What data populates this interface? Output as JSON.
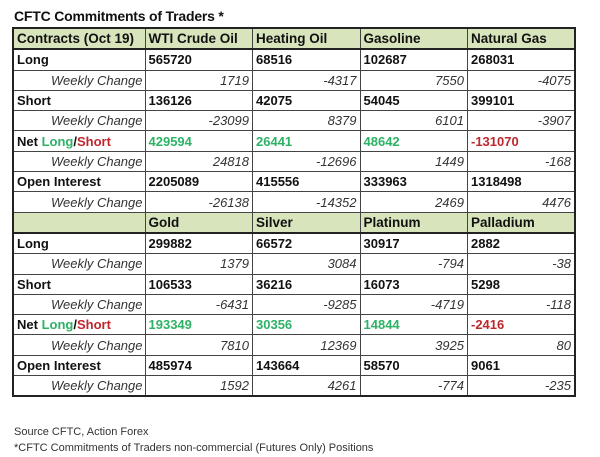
{
  "title": "CFTC Commitments of Traders *",
  "colors": {
    "header_bg": "#d8e4bc",
    "positive": "#2db266",
    "negative": "#c0272d"
  },
  "sections": [
    {
      "header": [
        "Contracts (Oct 19)",
        "WTI Crude Oil",
        "Heating Oil",
        "Gasoline",
        "Natural Gas"
      ],
      "rows": [
        {
          "label": "Long",
          "type": "main",
          "values": [
            "565720",
            "68516",
            "102687",
            "268031"
          ]
        },
        {
          "label": "Weekly Change",
          "type": "wc",
          "values": [
            "1719",
            "-4317",
            "7550",
            "-4075"
          ]
        },
        {
          "label": "Short",
          "type": "main",
          "values": [
            "136126",
            "42075",
            "54045",
            "399101"
          ]
        },
        {
          "label": "Weekly Change",
          "type": "wc",
          "values": [
            "-23099",
            "8379",
            "6101",
            "-3907"
          ]
        },
        {
          "label": "Net ",
          "label_long": "Long",
          "label_sep": "/",
          "label_short": "Short",
          "type": "net",
          "values": [
            "429594",
            "26441",
            "48642",
            "-131070"
          ]
        },
        {
          "label": "Weekly Change",
          "type": "wc",
          "values": [
            "24818",
            "-12696",
            "1449",
            "-168"
          ]
        },
        {
          "label": "Open Interest",
          "type": "main",
          "values": [
            "2205089",
            "415556",
            "333963",
            "1318498"
          ]
        },
        {
          "label": "Weekly Change",
          "type": "wc",
          "values": [
            "-26138",
            "-14352",
            "2469",
            "4476"
          ]
        }
      ]
    },
    {
      "header": [
        "",
        "Gold",
        "Silver",
        "Platinum",
        "Palladium"
      ],
      "rows": [
        {
          "label": "Long",
          "type": "main",
          "values": [
            "299882",
            "66572",
            "30917",
            "2882"
          ]
        },
        {
          "label": "Weekly Change",
          "type": "wc",
          "values": [
            "1379",
            "3084",
            "-794",
            "-38"
          ]
        },
        {
          "label": "Short",
          "type": "main",
          "values": [
            "106533",
            "36216",
            "16073",
            "5298"
          ]
        },
        {
          "label": "Weekly Change",
          "type": "wc",
          "values": [
            "-6431",
            "-9285",
            "-4719",
            "-118"
          ]
        },
        {
          "label": "Net ",
          "label_long": "Long",
          "label_sep": "/",
          "label_short": "Short",
          "type": "net",
          "values": [
            "193349",
            "30356",
            "14844",
            "-2416"
          ]
        },
        {
          "label": "Weekly Change",
          "type": "wc",
          "values": [
            "7810",
            "12369",
            "3925",
            "80"
          ]
        },
        {
          "label": "Open Interest",
          "type": "main",
          "values": [
            "485974",
            "143664",
            "58570",
            "9061"
          ]
        },
        {
          "label": "Weekly Change",
          "type": "wc",
          "values": [
            "1592",
            "4261",
            "-774",
            "-235"
          ]
        }
      ]
    }
  ],
  "footnotes": [
    "Source CFTC, Action Forex",
    "*CFTC Commitments of Traders non-commercial (Futures Only) Positions"
  ]
}
